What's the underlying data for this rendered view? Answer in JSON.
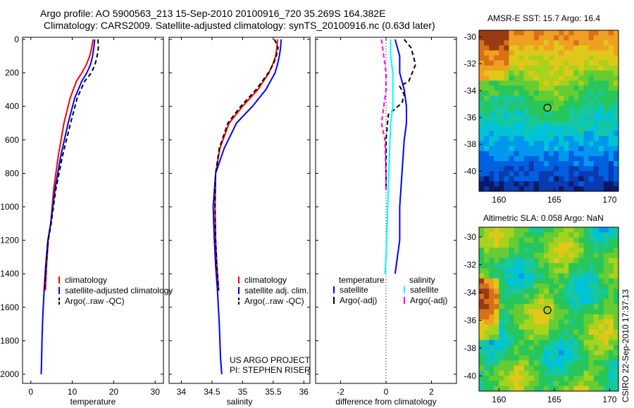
{
  "header": {
    "title_line1": "Argo profile: AO 5900563_213 15-Sep-2010 20100916_720 35.269S 164.382E",
    "title_line2": "Climatology: CARS2009. Satellite-adjusted climatology: synTS_20100916.nc (0.63d later)"
  },
  "colors": {
    "climatology": "#ff0000",
    "satellite": "#0000ff",
    "argo": "#000000",
    "sat_salinity": "#00ffff",
    "argo_salinity": "#ff00ff"
  },
  "chart_data": [
    {
      "type": "line",
      "name": "temperature",
      "xlabel": "temperature",
      "xlim": [
        -2,
        32
      ],
      "xticks": [
        0,
        10,
        20,
        30
      ],
      "ylim": [
        0,
        2050
      ],
      "yticks": [
        0,
        200,
        400,
        600,
        800,
        1000,
        1200,
        1400,
        1600,
        1800,
        2000
      ],
      "series": [
        {
          "name": "climatology",
          "color": "#ff0000",
          "dash": "",
          "x": [
            15.0,
            14.7,
            14.2,
            13.4,
            12.3,
            11.0,
            9.5,
            8.0,
            6.6,
            5.5,
            4.8,
            4.2,
            3.8,
            3.5
          ],
          "y": [
            0,
            50,
            100,
            150,
            200,
            250,
            350,
            500,
            700,
            900,
            1100,
            1200,
            1350,
            1500
          ]
        },
        {
          "name": "satellite-adjusted climatology",
          "color": "#0000ff",
          "dash": "",
          "x": [
            15.4,
            15.2,
            14.9,
            14.4,
            13.5,
            12.3,
            10.6,
            9.0,
            7.2,
            5.8,
            4.8,
            4.1,
            3.6,
            3.2,
            2.9,
            2.7,
            2.6,
            2.5
          ],
          "y": [
            0,
            50,
            100,
            150,
            200,
            250,
            350,
            500,
            700,
            900,
            1100,
            1200,
            1350,
            1500,
            1650,
            1800,
            1900,
            2000
          ]
        },
        {
          "name": "Argo(..raw -QC)",
          "color": "#000000",
          "dash": "6,4",
          "x": [
            16.2,
            16.3,
            16.0,
            15.5,
            14.6,
            13.0,
            11.2,
            9.6,
            7.6,
            6.0,
            4.9,
            4.2,
            3.7,
            3.3
          ],
          "y": [
            0,
            50,
            100,
            150,
            200,
            250,
            350,
            500,
            700,
            900,
            1100,
            1200,
            1350,
            1500
          ]
        }
      ],
      "legend": [
        "climatology",
        "satellite-adjusted climatology",
        "Argo(..raw -QC)"
      ]
    },
    {
      "type": "line",
      "name": "salinity",
      "xlabel": "salinity",
      "xlim": [
        33.8,
        36.1
      ],
      "xticks": [
        34,
        34.5,
        35,
        35.5,
        36
      ],
      "ylim": [
        0,
        2050
      ],
      "series": [
        {
          "name": "climatology",
          "color": "#ff0000",
          "dash": "",
          "x": [
            35.57,
            35.56,
            35.54,
            35.49,
            35.43,
            35.25,
            35.0,
            34.78,
            34.63,
            34.56,
            34.55,
            34.56,
            34.58,
            34.61
          ],
          "y": [
            0,
            50,
            100,
            150,
            200,
            300,
            400,
            500,
            650,
            800,
            1000,
            1200,
            1350,
            1500
          ]
        },
        {
          "name": "satellite adj. clim.",
          "color": "#0000ff",
          "dash": "",
          "x": [
            35.63,
            35.62,
            35.6,
            35.57,
            35.53,
            35.38,
            35.16,
            34.9,
            34.7,
            34.56,
            34.52,
            34.54,
            34.56,
            34.59,
            34.62,
            34.64,
            34.66
          ],
          "y": [
            0,
            50,
            100,
            150,
            200,
            300,
            400,
            500,
            650,
            800,
            1000,
            1200,
            1350,
            1500,
            1700,
            1900,
            2000
          ]
        },
        {
          "name": "Argo(..raw -QC)",
          "color": "#000000",
          "dash": "6,4",
          "x": [
            35.52,
            35.58,
            35.55,
            35.5,
            35.42,
            35.22,
            34.97,
            34.76,
            34.62,
            34.56,
            34.55,
            34.56,
            34.58,
            34.61
          ],
          "y": [
            0,
            50,
            100,
            150,
            200,
            300,
            400,
            500,
            650,
            800,
            1000,
            1200,
            1350,
            1500
          ]
        }
      ],
      "legend": [
        "climatology",
        "satellite adj. clim.",
        "Argo(..raw -QC)"
      ],
      "annotations": [
        "US ARGO PROJECT",
        "PI: STEPHEN RISER"
      ]
    },
    {
      "type": "line",
      "name": "difference",
      "xlabel": "difference from climatology",
      "xlim": [
        -3.1,
        3.1
      ],
      "xticks": [
        -2,
        0,
        2
      ],
      "ylim": [
        0,
        2050
      ],
      "series": [
        {
          "name": "temperature satellite",
          "color": "#0000ff",
          "dash": "",
          "x": [
            0.4,
            0.5,
            0.6,
            0.6,
            0.8,
            0.9,
            0.9,
            0.8,
            0.7,
            0.6,
            0.6,
            0.5,
            0.4
          ],
          "y": [
            0,
            50,
            100,
            200,
            300,
            400,
            500,
            600,
            800,
            1000,
            1200,
            1300,
            1400
          ]
        },
        {
          "name": "temperature Argo(-adj)",
          "color": "#000000",
          "dash": "6,4",
          "x": [
            0.8,
            1.1,
            1.3,
            1.0,
            0.6,
            0.8,
            0.7,
            0.1,
            0.0,
            0.0,
            0.0
          ],
          "y": [
            0,
            50,
            150,
            250,
            280,
            330,
            380,
            450,
            600,
            700,
            900
          ]
        },
        {
          "name": "salinity satellite",
          "color": "#00ffff",
          "dash": "",
          "x": [
            0.2,
            0.2,
            0.3,
            0.3,
            0.3,
            0.2,
            0.15,
            0.1,
            0.05,
            0.0,
            -0.05
          ],
          "y": [
            0,
            100,
            200,
            300,
            400,
            500,
            700,
            900,
            1100,
            1300,
            1400
          ]
        },
        {
          "name": "salinity Argo(-adj)",
          "color": "#ff00ff",
          "dash": "6,4",
          "x": [
            -0.2,
            -0.1,
            0.0,
            0.0,
            -0.1,
            -0.2,
            -0.05,
            0.0,
            0.0
          ],
          "y": [
            0,
            100,
            200,
            300,
            400,
            500,
            600,
            800,
            900
          ]
        }
      ],
      "legend_temperature": [
        "temperature",
        "satellite",
        "Argo(-adj)"
      ],
      "legend_salinity": [
        "salinity",
        "satellite",
        "Argo(-adj)"
      ]
    },
    {
      "type": "heatmap",
      "name": "sst-map",
      "title": "AMSR-E SST: 15.7 Argo: 16.4",
      "xlim": [
        158.2,
        170.8
      ],
      "ylim": [
        -41.5,
        -29.5
      ],
      "xticks": [
        160,
        165,
        170
      ],
      "yticks": [
        -30,
        -32,
        -34,
        -36,
        -38,
        -40
      ],
      "marker": {
        "lon": 164.382,
        "lat": -35.269
      }
    },
    {
      "type": "heatmap",
      "name": "sla-map",
      "title": "Altimetric SLA: 0.058 Argo: NaN",
      "xlim": [
        158.2,
        170.8
      ],
      "ylim": [
        -41.1,
        -29.3
      ],
      "xticks": [
        160,
        165,
        170
      ],
      "yticks": [
        -30,
        -32,
        -34,
        -36,
        -38,
        -40
      ],
      "marker": {
        "lon": 164.382,
        "lat": -35.269
      }
    }
  ],
  "credit": "CSIRO 22-Sep-2010 17:37:13"
}
